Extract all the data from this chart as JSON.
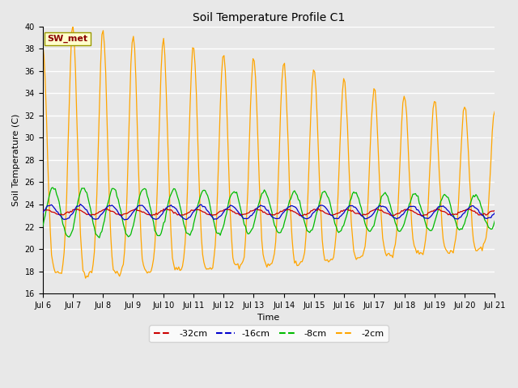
{
  "title": "Soil Temperature Profile C1",
  "xlabel": "Time",
  "ylabel": "Soil Temperature (C)",
  "ylim": [
    16,
    40
  ],
  "yticks": [
    16,
    18,
    20,
    22,
    24,
    26,
    28,
    30,
    32,
    34,
    36,
    38,
    40
  ],
  "annotation": "SW_met",
  "annotation_color": "#8B0000",
  "annotation_bg": "#FFFFCC",
  "plot_bg": "#E8E8E8",
  "fig_bg": "#E8E8E8",
  "line_colors": {
    "-32cm": "#CC0000",
    "-16cm": "#0000CC",
    "-8cm": "#00BB00",
    "-2cm": "#FFA500"
  },
  "x_tick_labels": [
    "Jul 6",
    "Jul 7",
    "Jul 8",
    "Jul 9",
    "Jul 10",
    "Jul 11",
    "Jul 12",
    "Jul 13",
    "Jul 14",
    "Jul 15",
    "Jul 16",
    "Jul 17",
    "Jul 18",
    "Jul 19",
    "Jul 20",
    "Jul 21"
  ],
  "n_days": 15,
  "start_day": 6
}
